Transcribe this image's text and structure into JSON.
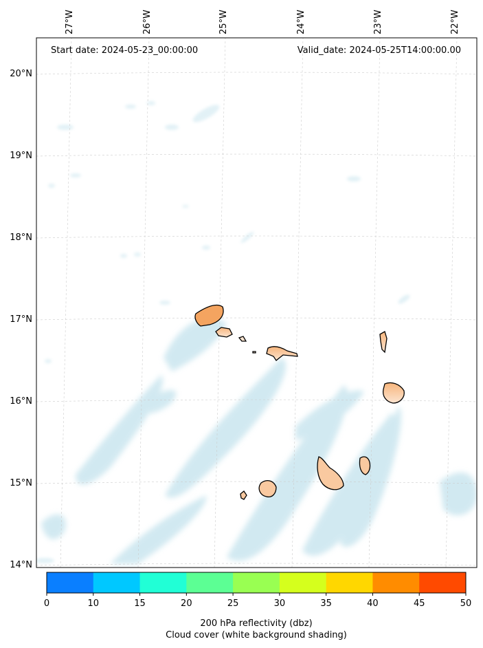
{
  "header": {
    "start_date": "Start date: 2024-05-23_00:00:00",
    "valid_date": "Valid_date: 2024-05-25T14:00:00.00"
  },
  "axes": {
    "lon_labels": [
      "27°W",
      "26°W",
      "25°W",
      "24°W",
      "23°W",
      "22°W"
    ],
    "lat_labels": [
      "20°N",
      "19°N",
      "18°N",
      "17°N",
      "16°N",
      "15°N",
      "14°N"
    ],
    "lon_range": [
      -27.35,
      -21.8
    ],
    "lat_range": [
      13.95,
      20.4
    ],
    "grid": true
  },
  "colorbar": {
    "ticks": [
      "0",
      "10",
      "15",
      "20",
      "25",
      "30",
      "35",
      "40",
      "45",
      "50"
    ],
    "colors": [
      "#0a7fff",
      "#00c8ff",
      "#21ffd6",
      "#5cff94",
      "#99ff52",
      "#d5ff1d",
      "#ffd700",
      "#ff8c00",
      "#ff4a00"
    ],
    "caption_1": "200 hPa reflectivity (dbz)",
    "caption_2": "Cloud cover (white background shading)"
  },
  "colors": {
    "cloud": "#add8e6",
    "island_fill": "#f4a460",
    "island_fill_light": "#fbe3cf",
    "island_outline": "#000000",
    "grid_line": "#cccccc"
  }
}
